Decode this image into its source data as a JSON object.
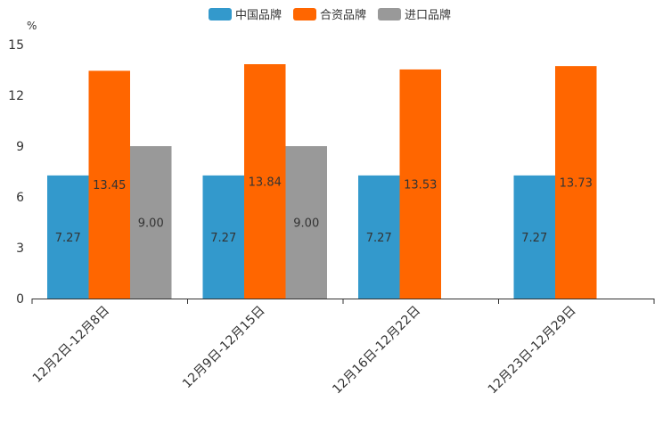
{
  "chart_data": {
    "type": "bar",
    "title": "",
    "unit": "%",
    "xlabel": "",
    "ylabel": "%",
    "ylim": [
      0,
      15
    ],
    "yticks": [
      0,
      3,
      6,
      9,
      12,
      15
    ],
    "grid": false,
    "legend_position": "top-center",
    "categories": [
      "12月2日-12月8日",
      "12月9日-12月15日",
      "12月16日-12月22日",
      "12月23日-12月29日"
    ],
    "series": [
      {
        "name": "中国品牌",
        "color": "#3399cc",
        "values": [
          7.27,
          7.27,
          7.27,
          7.27
        ],
        "labels": [
          "7.27",
          "7.27",
          "7.27",
          "7.27"
        ]
      },
      {
        "name": "合资品牌",
        "color": "#ff6600",
        "values": [
          13.45,
          13.84,
          13.53,
          13.73
        ],
        "labels": [
          "13.45",
          "13.84",
          "13.53",
          "13.73"
        ]
      },
      {
        "name": "进口品牌",
        "color": "#999999",
        "values": [
          9.0,
          9.0,
          null,
          null
        ],
        "labels": [
          "9.00",
          "9.00",
          null,
          null
        ]
      }
    ]
  }
}
